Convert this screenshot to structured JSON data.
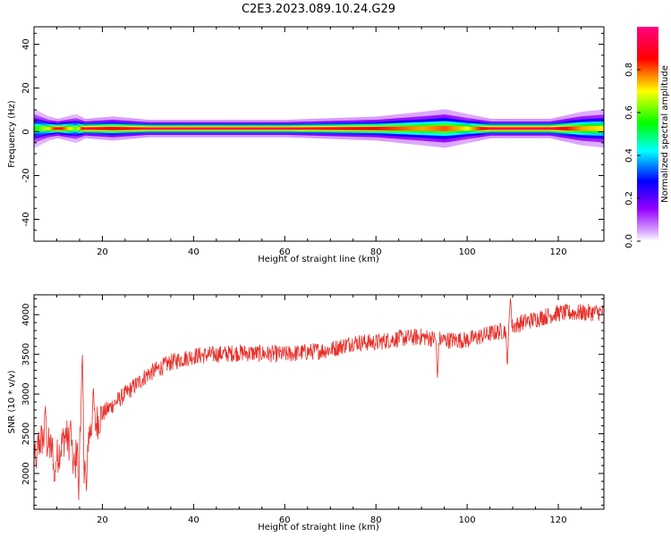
{
  "title": "C2E3.2023.089.10.24.G29",
  "chart_data": [
    {
      "type": "heatmap",
      "xlabel": "Height of straight line (km)",
      "ylabel": "Frequency (Hz)",
      "xlim": [
        5,
        130
      ],
      "ylim": [
        -50,
        48
      ],
      "xticks": [
        20,
        40,
        60,
        80,
        100,
        120
      ],
      "yticks": [
        40,
        20,
        0,
        -20,
        -40
      ],
      "colorbar": {
        "label": "Normalized spectral amplitude",
        "ticks": [
          "0.0",
          "0.2",
          "0.4",
          "0.6",
          "0.8"
        ],
        "range": [
          0,
          1
        ],
        "colormap": [
          "#ffffff",
          "#9400ff",
          "#0000ff",
          "#00ffff",
          "#00ff00",
          "#ffff00",
          "#ff0000",
          "#ff0080"
        ]
      },
      "band": {
        "center_hz": 1.5,
        "profile": [
          {
            "x": 5,
            "halfwidth_hz": 4.0,
            "peak": 0.55
          },
          {
            "x": 8,
            "halfwidth_hz": 2.5,
            "peak": 0.7
          },
          {
            "x": 10,
            "halfwidth_hz": 2.0,
            "peak": 0.9
          },
          {
            "x": 14,
            "halfwidth_hz": 3.0,
            "peak": 0.6
          },
          {
            "x": 16,
            "halfwidth_hz": 2.0,
            "peak": 0.95
          },
          {
            "x": 22,
            "halfwidth_hz": 2.5,
            "peak": 0.85
          },
          {
            "x": 30,
            "halfwidth_hz": 1.8,
            "peak": 0.95
          },
          {
            "x": 60,
            "halfwidth_hz": 1.8,
            "peak": 0.95
          },
          {
            "x": 80,
            "halfwidth_hz": 2.5,
            "peak": 0.85
          },
          {
            "x": 90,
            "halfwidth_hz": 3.5,
            "peak": 0.75
          },
          {
            "x": 95,
            "halfwidth_hz": 4.0,
            "peak": 0.8
          },
          {
            "x": 100,
            "halfwidth_hz": 3.0,
            "peak": 0.7
          },
          {
            "x": 105,
            "halfwidth_hz": 2.0,
            "peak": 0.95
          },
          {
            "x": 118,
            "halfwidth_hz": 2.0,
            "peak": 0.95
          },
          {
            "x": 125,
            "halfwidth_hz": 3.5,
            "peak": 0.75
          },
          {
            "x": 130,
            "halfwidth_hz": 4.0,
            "peak": 0.7
          }
        ]
      }
    },
    {
      "type": "line",
      "xlabel": "Height of straight line (km)",
      "ylabel": "SNR (10 * v/v)",
      "xlim": [
        5,
        130
      ],
      "ylim": [
        1550,
        4250
      ],
      "xticks": [
        20,
        40,
        60,
        80,
        100,
        120
      ],
      "yticks": [
        2000,
        2500,
        3000,
        3500,
        4000
      ],
      "line_color": "#e8302a",
      "trend": [
        {
          "x": 5,
          "y": 2300
        },
        {
          "x": 7,
          "y": 2450
        },
        {
          "x": 10,
          "y": 2200
        },
        {
          "x": 12,
          "y": 2500
        },
        {
          "x": 14,
          "y": 2050
        },
        {
          "x": 15,
          "y": 2900
        },
        {
          "x": 16,
          "y": 2100
        },
        {
          "x": 17,
          "y": 2500
        },
        {
          "x": 20,
          "y": 2750
        },
        {
          "x": 25,
          "y": 3000
        },
        {
          "x": 30,
          "y": 3250
        },
        {
          "x": 35,
          "y": 3400
        },
        {
          "x": 40,
          "y": 3480
        },
        {
          "x": 50,
          "y": 3520
        },
        {
          "x": 60,
          "y": 3500
        },
        {
          "x": 70,
          "y": 3560
        },
        {
          "x": 75,
          "y": 3650
        },
        {
          "x": 80,
          "y": 3650
        },
        {
          "x": 85,
          "y": 3700
        },
        {
          "x": 90,
          "y": 3720
        },
        {
          "x": 95,
          "y": 3680
        },
        {
          "x": 100,
          "y": 3680
        },
        {
          "x": 105,
          "y": 3760
        },
        {
          "x": 108,
          "y": 3800
        },
        {
          "x": 112,
          "y": 3900
        },
        {
          "x": 120,
          "y": 4020
        },
        {
          "x": 130,
          "y": 4030
        }
      ],
      "noise_amplitude": 110,
      "spikes": [
        {
          "x": 5.5,
          "y": 2050
        },
        {
          "x": 7.5,
          "y": 2850
        },
        {
          "x": 9.5,
          "y": 1850
        },
        {
          "x": 13,
          "y": 2700
        },
        {
          "x": 14.8,
          "y": 1600
        },
        {
          "x": 15.6,
          "y": 3560
        },
        {
          "x": 16.5,
          "y": 1750
        },
        {
          "x": 18,
          "y": 3100
        },
        {
          "x": 93.5,
          "y": 3180
        },
        {
          "x": 108.8,
          "y": 3330
        },
        {
          "x": 109.5,
          "y": 4250
        }
      ]
    }
  ]
}
